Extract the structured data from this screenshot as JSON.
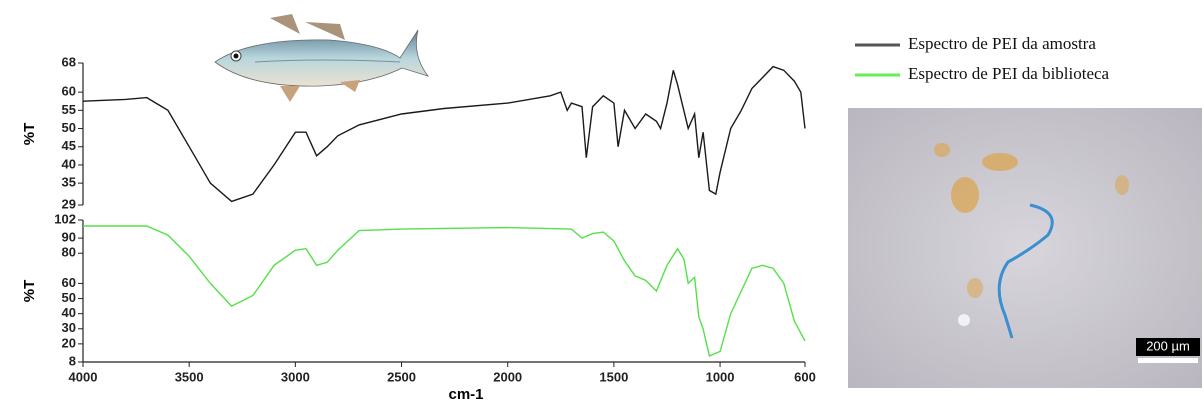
{
  "chart_data": [
    {
      "type": "line",
      "ylabel": "%T",
      "x": [
        4000,
        3800,
        3700,
        3600,
        3500,
        3400,
        3300,
        3200,
        3100,
        3000,
        2950,
        2900,
        2850,
        2800,
        2700,
        2500,
        2300,
        2000,
        1800,
        1750,
        1720,
        1700,
        1650,
        1630,
        1600,
        1550,
        1500,
        1480,
        1450,
        1400,
        1350,
        1300,
        1280,
        1250,
        1220,
        1200,
        1150,
        1120,
        1100,
        1080,
        1050,
        1020,
        1000,
        950,
        900,
        850,
        800,
        750,
        700,
        650,
        620,
        600
      ],
      "series": [
        {
          "name": "Espectro de PEI da amostra",
          "color": "#1a1a1a",
          "values": [
            57.5,
            58,
            58.5,
            55,
            45,
            35,
            30,
            32,
            40,
            49,
            49,
            42.5,
            45,
            48,
            51,
            54,
            55.5,
            57,
            59,
            60,
            55,
            57,
            56,
            42,
            56,
            59,
            57,
            45,
            55,
            50,
            54,
            52,
            50,
            57,
            66,
            62,
            50,
            54,
            42,
            49,
            33,
            32,
            38,
            50,
            55,
            61,
            64,
            67,
            66,
            63,
            60,
            50
          ]
        }
      ],
      "legend_color": "#555555",
      "xlim": [
        4000,
        600
      ],
      "ylim": [
        29,
        68
      ],
      "yticks": [
        29,
        35,
        40,
        45,
        50,
        55,
        60,
        68
      ]
    },
    {
      "type": "line",
      "ylabel": "%T",
      "xlabel": "cm-1",
      "x": [
        4000,
        3700,
        3600,
        3500,
        3400,
        3300,
        3200,
        3100,
        3000,
        2950,
        2900,
        2850,
        2800,
        2700,
        2500,
        2000,
        1700,
        1650,
        1600,
        1550,
        1500,
        1450,
        1400,
        1350,
        1300,
        1250,
        1200,
        1170,
        1150,
        1120,
        1100,
        1080,
        1050,
        1000,
        950,
        900,
        850,
        800,
        750,
        700,
        650,
        600
      ],
      "series": [
        {
          "name": "Espectro de PEI da biblioteca",
          "color": "#55e04a",
          "values": [
            98,
            98,
            92,
            78,
            60,
            45,
            52,
            72,
            82,
            83,
            72,
            74,
            82,
            95,
            96,
            97,
            96,
            90,
            93,
            94,
            88,
            75,
            65,
            62,
            55,
            72,
            83,
            76,
            60,
            64,
            38,
            30,
            12,
            15,
            40,
            55,
            70,
            72,
            70,
            60,
            35,
            22
          ]
        }
      ],
      "legend_color": "#66ee55",
      "xlim": [
        4000,
        600
      ],
      "ylim": [
        8,
        102
      ],
      "yticks": [
        8,
        20,
        30,
        40,
        50,
        60,
        80,
        90,
        102
      ],
      "xticks": [
        4000,
        3500,
        3000,
        2500,
        2000,
        1500,
        1000,
        600
      ]
    }
  ],
  "micrograph": {
    "scale_label": "200 µm"
  }
}
